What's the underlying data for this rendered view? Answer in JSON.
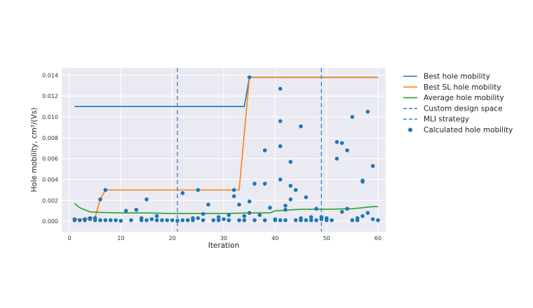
{
  "chart_data": {
    "type": "line",
    "xlabel": "Iteration",
    "ylabel": "Hole mobility, cm²/(Vs)",
    "xlim": [
      -1.5,
      61.5
    ],
    "ylim": [
      -0.001,
      0.0147
    ],
    "xticks": [
      0,
      10,
      20,
      30,
      40,
      50,
      60
    ],
    "xtick_labels": [
      "0",
      "10",
      "20",
      "30",
      "40",
      "50",
      "60"
    ],
    "yticks": [
      0,
      0.002,
      0.004,
      0.006,
      0.008,
      0.01,
      0.012,
      0.014
    ],
    "ytick_labels": [
      "0.000",
      "0.002",
      "0.004",
      "0.006",
      "0.008",
      "0.010",
      "0.012",
      "0.014"
    ],
    "grid": true,
    "legend_position": "outside-right",
    "background": "#eaeaf2",
    "series": [
      {
        "name": "Best hole mobility",
        "kind": "line",
        "color": "#1f77b4",
        "x": [
          1,
          34,
          35,
          60
        ],
        "y": [
          0.011,
          0.011,
          0.0138,
          0.0138
        ]
      },
      {
        "name": "Best SL hole mobility",
        "kind": "line",
        "color": "#ff7f0e",
        "x": [
          1,
          3,
          5,
          6,
          7,
          33,
          35,
          60
        ],
        "y": [
          0.0002,
          0.0002,
          0.0004,
          0.0021,
          0.003,
          0.003,
          0.0138,
          0.0138
        ]
      },
      {
        "name": "Average hole mobility",
        "kind": "line",
        "color": "#2ca02c",
        "x": [
          1,
          2,
          3,
          4,
          6,
          10,
          15,
          20,
          25,
          30,
          35,
          39,
          40,
          45,
          50,
          55,
          59,
          60
        ],
        "y": [
          0.0017,
          0.0013,
          0.0011,
          0.0009,
          0.00085,
          0.0008,
          0.0008,
          0.00075,
          0.00075,
          0.00075,
          0.0008,
          0.0008,
          0.001,
          0.00115,
          0.00115,
          0.0012,
          0.0014,
          0.0014
        ]
      },
      {
        "name": "Custom design space",
        "kind": "vline",
        "color": "#5b7fa8",
        "x": 21
      },
      {
        "name": "MLI strategy",
        "kind": "vline",
        "color": "#3a8fc8",
        "x": 49
      },
      {
        "name": "Calculated hole mobility",
        "kind": "scatter",
        "color": "#1f77b4",
        "points": [
          [
            1,
            0.0001
          ],
          [
            1,
            0.0002
          ],
          [
            2,
            0.0001
          ],
          [
            3,
            0.0001
          ],
          [
            3,
            0.0002
          ],
          [
            4,
            0.0002
          ],
          [
            4,
            0.0003
          ],
          [
            5,
            0.0001
          ],
          [
            5,
            0.0003
          ],
          [
            6,
            0.0001
          ],
          [
            6,
            0.0021
          ],
          [
            7,
            0.0001
          ],
          [
            7,
            0.003
          ],
          [
            8,
            0.0001
          ],
          [
            9,
            0.0001
          ],
          [
            10,
            5e-05
          ],
          [
            11,
            0.001
          ],
          [
            12,
            0.0001
          ],
          [
            13,
            0.0011
          ],
          [
            14,
            0.0001
          ],
          [
            14,
            0.0003
          ],
          [
            15,
            0.0001
          ],
          [
            15,
            0.0021
          ],
          [
            16,
            0.0002
          ],
          [
            17,
            0.0001
          ],
          [
            17,
            0.0005
          ],
          [
            18,
            0.0001
          ],
          [
            19,
            0.0001
          ],
          [
            20,
            0.0001
          ],
          [
            21,
            5e-05
          ],
          [
            22,
            0.0001
          ],
          [
            22,
            0.0027
          ],
          [
            23,
            0.0001
          ],
          [
            24,
            0.0001
          ],
          [
            24,
            0.0003
          ],
          [
            25,
            0.0003
          ],
          [
            25,
            0.003
          ],
          [
            26,
            0.0001
          ],
          [
            26,
            0.0007
          ],
          [
            27,
            0.0016
          ],
          [
            28,
            0.0001
          ],
          [
            29,
            0.0001
          ],
          [
            29,
            0.0004
          ],
          [
            30,
            0.0002
          ],
          [
            31,
            0.0001
          ],
          [
            31,
            0.0006
          ],
          [
            32,
            0.0024
          ],
          [
            32,
            0.003
          ],
          [
            33,
            0.0001
          ],
          [
            33,
            0.0016
          ],
          [
            34,
            0.0001
          ],
          [
            34,
            0.0005
          ],
          [
            35,
            0.0008
          ],
          [
            35,
            0.0019
          ],
          [
            35,
            0.0138
          ],
          [
            36,
            0.0001
          ],
          [
            36,
            0.0036
          ],
          [
            37,
            0.0006
          ],
          [
            38,
            0.0001
          ],
          [
            38,
            0.0068
          ],
          [
            38,
            0.0036
          ],
          [
            39,
            0.0013
          ],
          [
            40,
            0.0001
          ],
          [
            40,
            0.0002
          ],
          [
            41,
            0.0001
          ],
          [
            41,
            0.004
          ],
          [
            41,
            0.0072
          ],
          [
            41,
            0.0096
          ],
          [
            41,
            0.0127
          ],
          [
            42,
            0.0001
          ],
          [
            42,
            0.0011
          ],
          [
            42,
            0.0015
          ],
          [
            43,
            0.0021
          ],
          [
            43,
            0.0034
          ],
          [
            43,
            0.0057
          ],
          [
            44,
            0.003
          ],
          [
            44,
            0.0001
          ],
          [
            45,
            0.0001
          ],
          [
            45,
            0.0003
          ],
          [
            45,
            0.0091
          ],
          [
            46,
            0.0023
          ],
          [
            46,
            0.0001
          ],
          [
            47,
            0.0001
          ],
          [
            47,
            0.0004
          ],
          [
            48,
            0.0012
          ],
          [
            48,
            0.0001
          ],
          [
            49,
            0.0002
          ],
          [
            49,
            0.0004
          ],
          [
            50,
            0.0001
          ],
          [
            50,
            0.0003
          ],
          [
            51,
            0.0001
          ],
          [
            52,
            0.006
          ],
          [
            52,
            0.0076
          ],
          [
            53,
            0.0075
          ],
          [
            53,
            0.0009
          ],
          [
            54,
            0.0068
          ],
          [
            54,
            0.0012
          ],
          [
            55,
            0.0001
          ],
          [
            55,
            0.01
          ],
          [
            56,
            0.0001
          ],
          [
            56,
            0.0003
          ],
          [
            57,
            0.0038
          ],
          [
            57,
            0.0039
          ],
          [
            57,
            0.0005
          ],
          [
            58,
            0.0105
          ],
          [
            58,
            0.0008
          ],
          [
            59,
            0.0053
          ],
          [
            59,
            0.0002
          ],
          [
            60,
            0.0001
          ]
        ]
      }
    ]
  }
}
